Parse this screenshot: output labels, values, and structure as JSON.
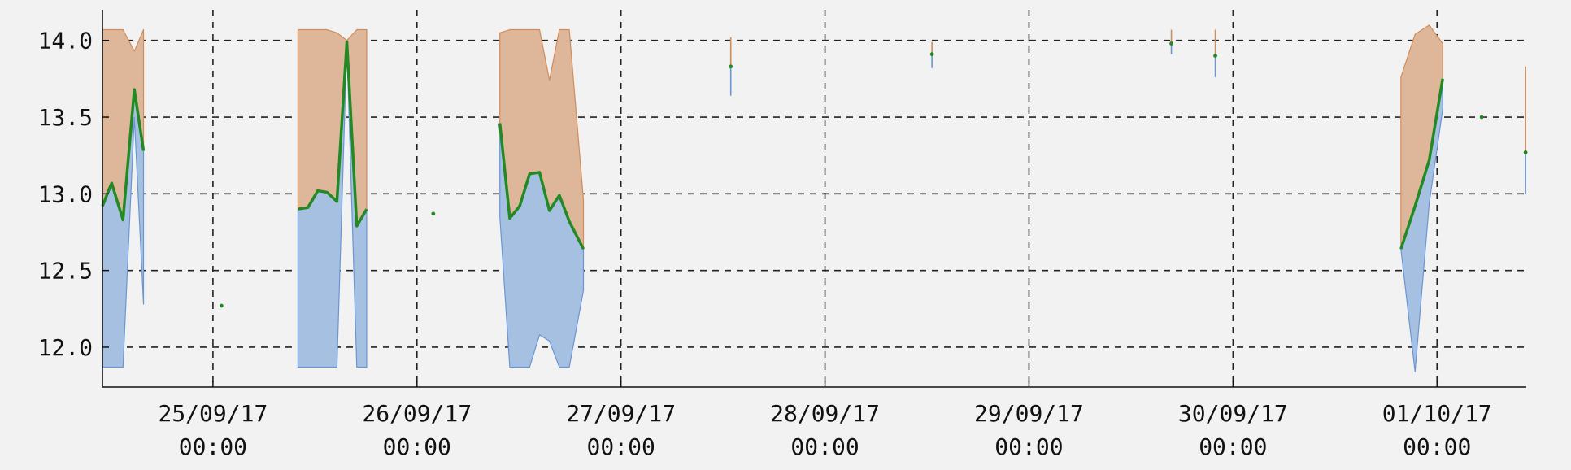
{
  "chart_data": {
    "type": "area",
    "title": "",
    "xlabel": "",
    "ylabel": "",
    "ylim": [
      11.74,
      14.2
    ],
    "xlim": [
      "2017-09-24T11:00",
      "2017-10-01T10:30"
    ],
    "grid": true,
    "grid_style": "dashed",
    "legend": "none",
    "colors": {
      "background": "#f2f2f2",
      "upper_band": "#deb79a",
      "upper_band_edge": "#d08c5a",
      "lower_band": "#a6c0e2",
      "lower_band_edge": "#6a96d4",
      "median_line": "#238a23",
      "grid": "#222222",
      "axis": "#111111"
    },
    "y_ticks": [
      {
        "value": 12.0,
        "label": "12.0"
      },
      {
        "value": 12.5,
        "label": "12.5"
      },
      {
        "value": 13.0,
        "label": "13.0"
      },
      {
        "value": 13.5,
        "label": "13.5"
      },
      {
        "value": 14.0,
        "label": "14.0"
      }
    ],
    "x_ticks": [
      {
        "value": "2017-09-25T00:00",
        "date": "25/09/17",
        "time": "00:00"
      },
      {
        "value": "2017-09-26T00:00",
        "date": "26/09/17",
        "time": "00:00"
      },
      {
        "value": "2017-09-27T00:00",
        "date": "27/09/17",
        "time": "00:00"
      },
      {
        "value": "2017-09-28T00:00",
        "date": "28/09/17",
        "time": "00:00"
      },
      {
        "value": "2017-09-29T00:00",
        "date": "29/09/17",
        "time": "00:00"
      },
      {
        "value": "2017-09-30T00:00",
        "date": "30/09/17",
        "time": "00:00"
      },
      {
        "value": "2017-10-01T00:00",
        "date": "01/10/17",
        "time": "00:00"
      }
    ],
    "series": [
      {
        "segments": [
          {
            "points": [
              {
                "t": "2017-09-24T11:00",
                "low": 11.87,
                "mid": 12.92,
                "high": 14.07
              },
              {
                "t": "2017-09-24T12:05",
                "low": 11.87,
                "mid": 13.07,
                "high": 14.07
              },
              {
                "t": "2017-09-24T13:25",
                "low": 11.87,
                "mid": 12.83,
                "high": 14.07
              },
              {
                "t": "2017-09-24T14:45",
                "low": 13.5,
                "mid": 13.68,
                "high": 13.93
              },
              {
                "t": "2017-09-24T15:50",
                "low": 12.28,
                "mid": 13.28,
                "high": 14.07
              }
            ]
          },
          {
            "points": [
              {
                "t": "2017-09-25T01:00",
                "low": 12.27,
                "mid": 12.27,
                "high": 12.27
              }
            ]
          },
          {
            "points": [
              {
                "t": "2017-09-25T10:00",
                "low": 11.87,
                "mid": 12.9,
                "high": 14.07
              },
              {
                "t": "2017-09-25T11:10",
                "low": 11.87,
                "mid": 12.91,
                "high": 14.07
              },
              {
                "t": "2017-09-25T12:20",
                "low": 11.87,
                "mid": 13.02,
                "high": 14.07
              },
              {
                "t": "2017-09-25T13:25",
                "low": 11.87,
                "mid": 13.01,
                "high": 14.07
              },
              {
                "t": "2017-09-25T14:35",
                "low": 11.87,
                "mid": 12.95,
                "high": 14.05
              },
              {
                "t": "2017-09-25T15:45",
                "low": 13.98,
                "mid": 13.99,
                "high": 14.0
              },
              {
                "t": "2017-09-25T16:55",
                "low": 11.87,
                "mid": 12.79,
                "high": 14.07
              },
              {
                "t": "2017-09-25T18:05",
                "low": 11.87,
                "mid": 12.9,
                "high": 14.07
              }
            ]
          },
          {
            "points": [
              {
                "t": "2017-09-26T01:55",
                "low": 12.87,
                "mid": 12.87,
                "high": 12.87
              }
            ]
          },
          {
            "points": [
              {
                "t": "2017-09-26T09:45",
                "low": 12.85,
                "mid": 13.46,
                "high": 14.05
              },
              {
                "t": "2017-09-26T10:55",
                "low": 11.87,
                "mid": 12.84,
                "high": 14.07
              },
              {
                "t": "2017-09-26T12:05",
                "low": 11.87,
                "mid": 12.92,
                "high": 14.07
              },
              {
                "t": "2017-09-26T13:15",
                "low": 11.87,
                "mid": 13.13,
                "high": 14.07
              },
              {
                "t": "2017-09-26T14:25",
                "low": 12.08,
                "mid": 13.14,
                "high": 14.07
              },
              {
                "t": "2017-09-26T15:35",
                "low": 12.04,
                "mid": 12.89,
                "high": 13.74
              },
              {
                "t": "2017-09-26T16:45",
                "low": 11.87,
                "mid": 12.99,
                "high": 14.07
              },
              {
                "t": "2017-09-26T17:55",
                "low": 11.87,
                "mid": 12.82,
                "high": 14.07
              },
              {
                "t": "2017-09-26T19:35",
                "low": 12.37,
                "mid": 12.64,
                "high": 12.96
              }
            ]
          },
          {
            "points": [
              {
                "t": "2017-09-27T12:55",
                "low": 13.64,
                "mid": 13.83,
                "high": 14.02
              }
            ]
          },
          {
            "points": [
              {
                "t": "2017-09-28T12:35",
                "low": 13.82,
                "mid": 13.91,
                "high": 13.99
              }
            ]
          },
          {
            "points": [
              {
                "t": "2017-09-29T16:45",
                "low": 13.91,
                "mid": 13.98,
                "high": 14.07
              }
            ]
          },
          {
            "points": [
              {
                "t": "2017-09-29T21:55",
                "low": 13.76,
                "mid": 13.9,
                "high": 14.07
              }
            ]
          },
          {
            "points": [
              {
                "t": "2017-09-30T19:45",
                "low": 12.64,
                "mid": 12.64,
                "high": 13.76
              },
              {
                "t": "2017-09-30T21:25",
                "low": 11.84,
                "mid": 12.92,
                "high": 14.04
              },
              {
                "t": "2017-09-30T23:05",
                "low": 12.94,
                "mid": 13.22,
                "high": 14.1
              },
              {
                "t": "2017-10-01T00:40",
                "low": 13.55,
                "mid": 13.75,
                "high": 13.98
              }
            ]
          },
          {
            "points": [
              {
                "t": "2017-10-01T05:15",
                "low": 13.5,
                "mid": 13.5,
                "high": 13.5
              }
            ]
          },
          {
            "points": [
              {
                "t": "2017-10-01T10:25",
                "low": 13.0,
                "mid": 13.27,
                "high": 13.83
              }
            ]
          }
        ]
      }
    ]
  }
}
